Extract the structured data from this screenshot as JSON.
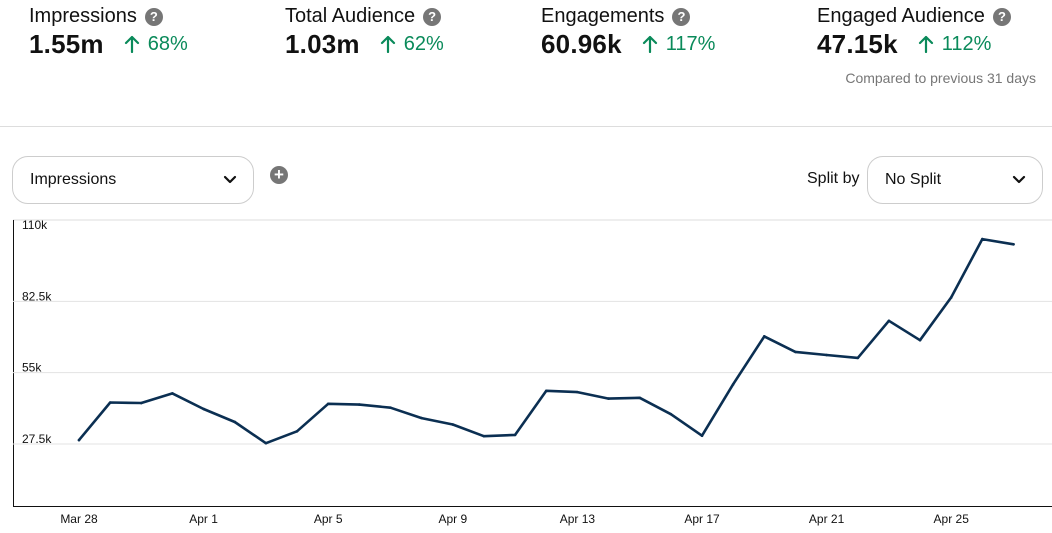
{
  "metrics": [
    {
      "title": "Impressions",
      "value": "1.55m",
      "change": "68%"
    },
    {
      "title": "Total Audience",
      "value": "1.03m",
      "change": "62%"
    },
    {
      "title": "Engagements",
      "value": "60.96k",
      "change": "117%"
    },
    {
      "title": "Engaged Audience",
      "value": "47.15k",
      "change": "112%"
    }
  ],
  "comparison_note": "Compared to previous 31 days",
  "controls": {
    "metric_select": "Impressions",
    "split_label": "Split by",
    "split_select": "No Split"
  },
  "colors": {
    "accent_positive": "#0a8a5a",
    "line": "#0b2f52",
    "help_icon": "#767676"
  },
  "chart_data": {
    "type": "line",
    "y_ticks": [
      "110k",
      "82.5k",
      "55k",
      "27.5k"
    ],
    "y_tick_values": [
      110000,
      82500,
      55000,
      27500
    ],
    "ylim": [
      0,
      110000
    ],
    "x_tick_labels": [
      "Mar 28",
      "Apr 1",
      "Apr 5",
      "Apr 9",
      "Apr 13",
      "Apr 17",
      "Apr 21",
      "Apr 25"
    ],
    "x": [
      "Mar 28",
      "Mar 29",
      "Mar 30",
      "Mar 31",
      "Apr 1",
      "Apr 2",
      "Apr 3",
      "Apr 4",
      "Apr 5",
      "Apr 6",
      "Apr 7",
      "Apr 8",
      "Apr 9",
      "Apr 10",
      "Apr 11",
      "Apr 12",
      "Apr 13",
      "Apr 14",
      "Apr 15",
      "Apr 16",
      "Apr 17",
      "Apr 18",
      "Apr 19",
      "Apr 20",
      "Apr 21",
      "Apr 22",
      "Apr 23",
      "Apr 24",
      "Apr 25",
      "Apr 26",
      "Apr 27"
    ],
    "series": [
      {
        "values": [
          29000,
          43500,
          43300,
          47000,
          41000,
          36000,
          27800,
          32400,
          43000,
          42700,
          41500,
          37500,
          35000,
          30500,
          31000,
          48000,
          47500,
          45000,
          45300,
          39000,
          30700,
          50500,
          69000,
          63000,
          61800,
          60700,
          75000,
          67500,
          84000,
          106500,
          104500
        ]
      }
    ],
    "grid": true,
    "legend": "none"
  }
}
